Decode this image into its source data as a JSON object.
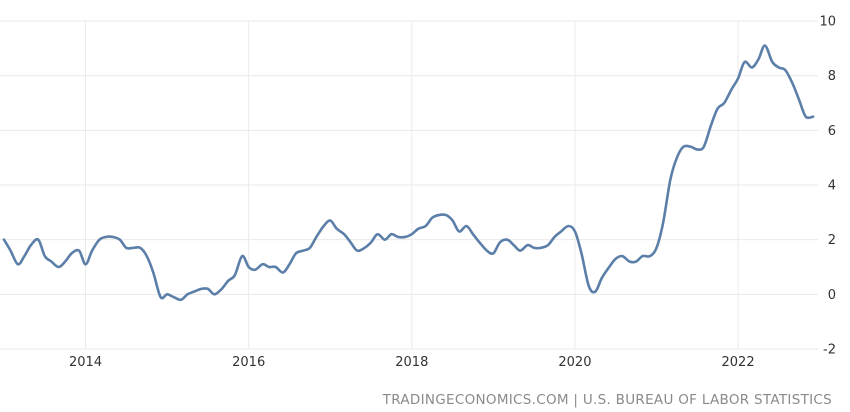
{
  "chart_data": {
    "type": "line",
    "title": "",
    "xlabel": "",
    "ylabel": "",
    "x_ticks": [
      "2014",
      "2016",
      "2018",
      "2020",
      "2022"
    ],
    "y_ticks": [
      -2,
      0,
      2,
      4,
      6,
      8,
      10
    ],
    "ylim": [
      -2,
      10
    ],
    "xlim": [
      2013.0,
      2022.98
    ],
    "grid": true,
    "y_axis_side": "right",
    "series": [
      {
        "color": "#5b7fa8",
        "x": [
          2013.0,
          2013.08,
          2013.17,
          2013.25,
          2013.33,
          2013.42,
          2013.5,
          2013.58,
          2013.67,
          2013.75,
          2013.83,
          2013.92,
          2014.0,
          2014.08,
          2014.17,
          2014.25,
          2014.33,
          2014.42,
          2014.5,
          2014.58,
          2014.67,
          2014.75,
          2014.83,
          2014.92,
          2015.0,
          2015.08,
          2015.17,
          2015.25,
          2015.33,
          2015.42,
          2015.5,
          2015.58,
          2015.67,
          2015.75,
          2015.83,
          2015.92,
          2016.0,
          2016.08,
          2016.17,
          2016.25,
          2016.33,
          2016.42,
          2016.5,
          2016.58,
          2016.67,
          2016.75,
          2016.83,
          2016.92,
          2017.0,
          2017.08,
          2017.17,
          2017.25,
          2017.33,
          2017.42,
          2017.5,
          2017.58,
          2017.67,
          2017.75,
          2017.83,
          2017.92,
          2018.0,
          2018.08,
          2018.17,
          2018.25,
          2018.33,
          2018.42,
          2018.5,
          2018.58,
          2018.67,
          2018.75,
          2018.83,
          2018.92,
          2019.0,
          2019.08,
          2019.17,
          2019.25,
          2019.33,
          2019.42,
          2019.5,
          2019.58,
          2019.67,
          2019.75,
          2019.83,
          2019.92,
          2020.0,
          2020.08,
          2020.17,
          2020.25,
          2020.33,
          2020.42,
          2020.5,
          2020.58,
          2020.67,
          2020.75,
          2020.83,
          2020.92,
          2021.0,
          2021.08,
          2021.17,
          2021.25,
          2021.33,
          2021.42,
          2021.5,
          2021.58,
          2021.67,
          2021.75,
          2021.83,
          2021.92,
          2022.0,
          2022.08,
          2022.17,
          2022.25,
          2022.33,
          2022.42,
          2022.5,
          2022.58,
          2022.67,
          2022.75,
          2022.83,
          2022.92
        ],
        "values": [
          2.0,
          1.6,
          1.1,
          1.4,
          1.8,
          2.0,
          1.4,
          1.2,
          1.0,
          1.2,
          1.5,
          1.6,
          1.1,
          1.6,
          2.0,
          2.1,
          2.1,
          2.0,
          1.7,
          1.7,
          1.7,
          1.4,
          0.8,
          -0.1,
          0.0,
          -0.1,
          -0.2,
          0.0,
          0.1,
          0.2,
          0.2,
          0.0,
          0.2,
          0.5,
          0.7,
          1.4,
          1.0,
          0.9,
          1.1,
          1.0,
          1.0,
          0.8,
          1.1,
          1.5,
          1.6,
          1.7,
          2.1,
          2.5,
          2.7,
          2.4,
          2.2,
          1.9,
          1.6,
          1.7,
          1.9,
          2.2,
          2.0,
          2.2,
          2.1,
          2.1,
          2.2,
          2.4,
          2.5,
          2.8,
          2.9,
          2.9,
          2.7,
          2.3,
          2.5,
          2.2,
          1.9,
          1.6,
          1.5,
          1.9,
          2.0,
          1.8,
          1.6,
          1.8,
          1.7,
          1.7,
          1.8,
          2.1,
          2.3,
          2.5,
          2.3,
          1.5,
          0.3,
          0.1,
          0.6,
          1.0,
          1.3,
          1.4,
          1.2,
          1.2,
          1.4,
          1.4,
          1.7,
          2.6,
          4.2,
          5.0,
          5.4,
          5.4,
          5.3,
          5.4,
          6.2,
          6.8,
          7.0,
          7.5,
          7.9,
          8.5,
          8.3,
          8.6,
          9.1,
          8.5,
          8.3,
          8.2,
          7.7,
          7.1,
          6.5,
          6.5
        ]
      }
    ]
  },
  "footer": {
    "source": "TRADINGECONOMICS.COM | U.S. BUREAU OF LABOR STATISTICS"
  }
}
